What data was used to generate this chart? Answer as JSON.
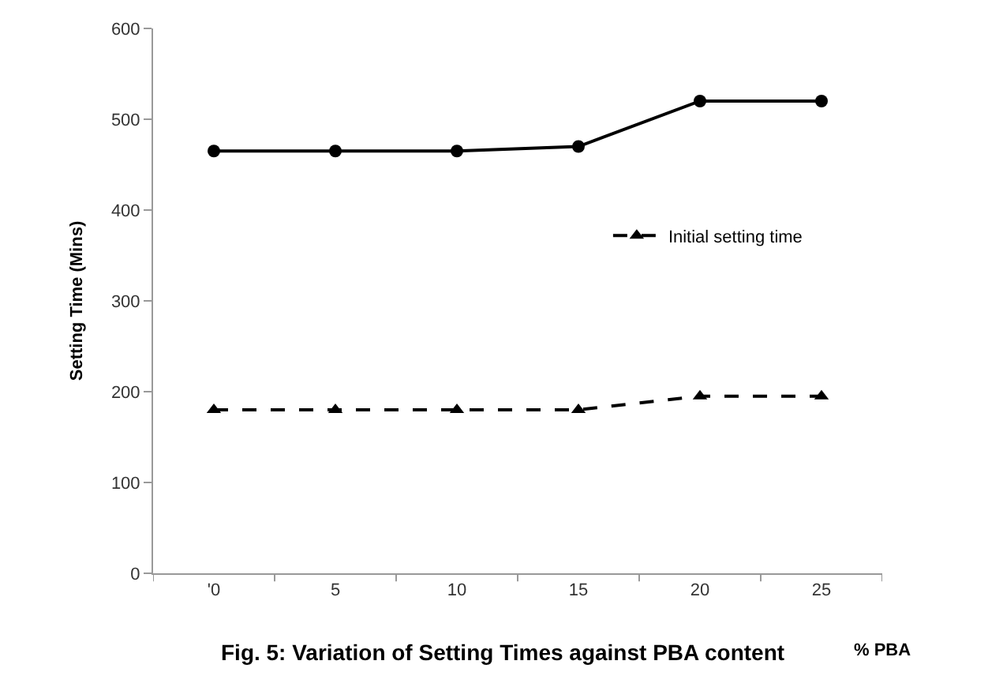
{
  "chart_data": {
    "type": "line",
    "categories": [
      "'0",
      "5",
      "10",
      "15",
      "20",
      "25"
    ],
    "series": [
      {
        "color": "#000000",
        "values": [
          465,
          465,
          465,
          470,
          520,
          520
        ],
        "marker": "circle",
        "line_style": "solid"
      },
      {
        "name": "Initial setting time",
        "color": "#000000",
        "values": [
          180,
          180,
          180,
          180,
          195,
          195
        ],
        "marker": "triangle",
        "line_style": "dashed"
      }
    ],
    "ylabel": "Setting Time (Mins)",
    "xlabel": "% PBA",
    "annotations": [
      "Fig. 5: Variation of Setting Times against PBA content"
    ],
    "ylim": [
      0,
      600
    ],
    "yticks": [
      0,
      100,
      200,
      300,
      400,
      500,
      600
    ],
    "legend": "right"
  }
}
